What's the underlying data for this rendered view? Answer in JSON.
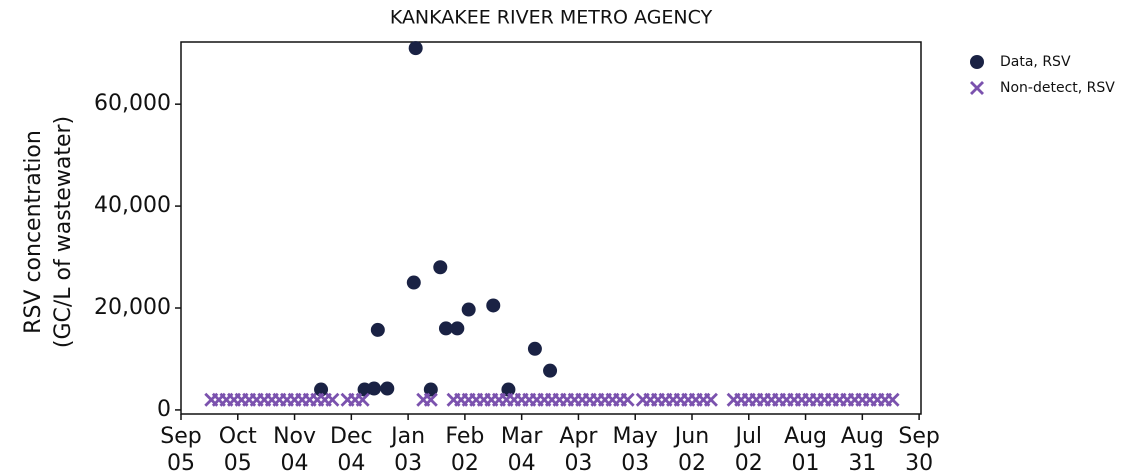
{
  "chart_data": {
    "type": "scatter",
    "title": "KANKAKEE RIVER METRO AGENCY",
    "ylabel": [
      "RSV concentration",
      "(GC/L of wastewater)"
    ],
    "xlim": [
      0,
      391
    ],
    "xticks": [
      {
        "value": 0,
        "label": [
          "Sep",
          "05"
        ]
      },
      {
        "value": 30,
        "label": [
          "Oct",
          "05"
        ]
      },
      {
        "value": 60,
        "label": [
          "Nov",
          "04"
        ]
      },
      {
        "value": 90,
        "label": [
          "Dec",
          "04"
        ]
      },
      {
        "value": 120,
        "label": [
          "Jan",
          "03"
        ]
      },
      {
        "value": 150,
        "label": [
          "Feb",
          "02"
        ]
      },
      {
        "value": 180,
        "label": [
          "Mar",
          "04"
        ]
      },
      {
        "value": 210,
        "label": [
          "Apr",
          "03"
        ]
      },
      {
        "value": 240,
        "label": [
          "May",
          "03"
        ]
      },
      {
        "value": 270,
        "label": [
          "Jun",
          "02"
        ]
      },
      {
        "value": 300,
        "label": [
          "Jul",
          "02"
        ]
      },
      {
        "value": 330,
        "label": [
          "Aug",
          "01"
        ]
      },
      {
        "value": 360,
        "label": [
          "Aug",
          "31"
        ]
      },
      {
        "value": 390,
        "label": [
          "Sep",
          "30"
        ]
      }
    ],
    "ylim": [
      -800,
      72200
    ],
    "yticks": [
      0,
      {
        "value": 20000,
        "label": "20,000"
      },
      {
        "value": 40000,
        "label": "40,000"
      },
      {
        "value": 60000,
        "label": "60,000"
      }
    ],
    "legend": "outside-right",
    "series": [
      {
        "name": "Data, RSV",
        "color": "#1a2244",
        "marker": "circle",
        "x": [
          74,
          97,
          102,
          104,
          109,
          123,
          124,
          132,
          137,
          140,
          146,
          152,
          165,
          173,
          187,
          195
        ],
        "values": [
          4000,
          4000,
          4200,
          15700,
          4200,
          25000,
          71000,
          4000,
          28000,
          16000,
          16000,
          19700,
          20500,
          4000,
          12000,
          7700
        ]
      },
      {
        "name": "Non-detect, RSV",
        "color": "#7b52ae",
        "marker": "x",
        "x": [
          16,
          20,
          24,
          28,
          32,
          36,
          40,
          44,
          48,
          52,
          56,
          60,
          64,
          68,
          72,
          76,
          80,
          88,
          92,
          96,
          128,
          132,
          144,
          148,
          152,
          156,
          160,
          164,
          168,
          172,
          176,
          180,
          184,
          188,
          192,
          196,
          200,
          204,
          208,
          212,
          216,
          220,
          224,
          228,
          232,
          236,
          244,
          248,
          252,
          256,
          260,
          264,
          268,
          272,
          276,
          280,
          292,
          296,
          300,
          304,
          308,
          312,
          316,
          320,
          324,
          328,
          332,
          336,
          340,
          344,
          348,
          352,
          356,
          360,
          364,
          368,
          372,
          376
        ],
        "values": [
          2000,
          2000,
          2000,
          2000,
          2000,
          2000,
          2000,
          2000,
          2000,
          2000,
          2000,
          2000,
          2000,
          2000,
          2000,
          2000,
          2000,
          2000,
          2000,
          2000,
          2000,
          2000,
          2000,
          2000,
          2000,
          2000,
          2000,
          2000,
          2000,
          2000,
          2000,
          2000,
          2000,
          2000,
          2000,
          2000,
          2000,
          2000,
          2000,
          2000,
          2000,
          2000,
          2000,
          2000,
          2000,
          2000,
          2000,
          2000,
          2000,
          2000,
          2000,
          2000,
          2000,
          2000,
          2000,
          2000,
          2000,
          2000,
          2000,
          2000,
          2000,
          2000,
          2000,
          2000,
          2000,
          2000,
          2000,
          2000,
          2000,
          2000,
          2000,
          2000,
          2000,
          2000,
          2000,
          2000,
          2000,
          2000
        ]
      }
    ]
  }
}
